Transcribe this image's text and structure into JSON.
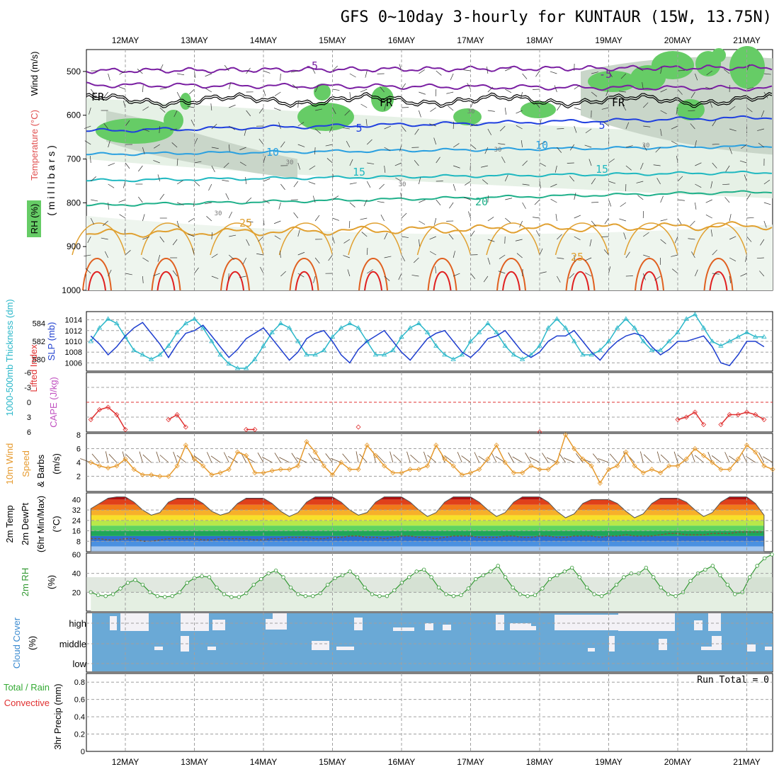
{
  "title": "GFS 0~10day 3-hourly for KUNTAUR (15W, 13.75N)",
  "days": [
    "12MAY",
    "13MAY",
    "14MAY",
    "15MAY",
    "16MAY",
    "17MAY",
    "18MAY",
    "19MAY",
    "20MAY",
    "21MAY"
  ],
  "colors": {
    "grid": "#a0a0a0",
    "rh": "#66cc66",
    "slp": "#1f3fcf",
    "thick": "#2ab7c9",
    "li": "#e03030",
    "wind": "#e69a2e",
    "rh2m": "#339933",
    "cloud": "#6aa9d6",
    "cloud_gap": "#f3f1f6"
  },
  "panels": {
    "upper": {
      "ylabel_mb": "( m i l l i b a r s )",
      "ylabel_wind": "Wind (m/s)",
      "ylabel_temp": "Temperature (°C)",
      "ylabel_rh": "RH (%)",
      "ticks": [
        "500",
        "600",
        "700",
        "800",
        "900",
        "1000"
      ],
      "contour_labels": [
        "-5",
        "-5",
        "5",
        "5",
        "10",
        "10",
        "15",
        "15",
        "20",
        "25",
        "25",
        "FR",
        "FR",
        "FR",
        "30",
        "30",
        "30",
        "30",
        "30",
        "30"
      ]
    },
    "slp": {
      "ylabel_slp": "SLP (mb)",
      "ylabel_thick": "1000-500mb Thickness (dm)",
      "ticks_left": [
        "584",
        "582",
        "580"
      ],
      "ticks_right": [
        "1014",
        "1012",
        "1010",
        "1008",
        "1006"
      ]
    },
    "cape": {
      "ylabel_cape": "CAPE (J/kg)",
      "ylabel_li": "Lifted Index",
      "ticks": [
        "-6",
        "-3",
        "0",
        "3",
        "6"
      ]
    },
    "wind": {
      "ylabel1": "10m Wind",
      "ylabel2": "Speed",
      "ylabel3": "& Barbs",
      "unit": "(m/s)",
      "ticks": [
        "8",
        "6",
        "4",
        "2"
      ]
    },
    "temp": {
      "ylabel1": "2m Temp",
      "ylabel2": "2m DewPt",
      "ylabel3": "(6hr Min/Max)",
      "unit": "(°C)",
      "ticks": [
        "40",
        "32",
        "24",
        "16",
        "8"
      ]
    },
    "rh": {
      "ylabel": "2m RH",
      "unit": "(%)",
      "ticks": [
        "60",
        "40",
        "20"
      ]
    },
    "cloud": {
      "ylabel": "Cloud Cover",
      "unit": "(%)",
      "levels": [
        "high",
        "middle",
        "low"
      ]
    },
    "precip": {
      "ylabel1": "3hr Precip (mm)",
      "ylabel2": "Total / Rain",
      "ylabel3": "Convective",
      "ticks": [
        "0.8",
        "0.6",
        "0.4",
        "0.2",
        "0"
      ],
      "run_total": "Run Total = 0"
    }
  },
  "chart_data": [
    {
      "type": "line",
      "name": "SLP / Thickness",
      "x_unit": "3-hourly steps from 11 MAY 12Z",
      "series": [
        {
          "name": "SLP (mb)",
          "values": [
            1011.0,
            1009.5,
            1007.5,
            1009.0,
            1011.0,
            1012.5,
            1013.5,
            1011.5,
            1009.5,
            1007.0,
            1009.5,
            1011.5,
            1012.0,
            1013.0,
            1011.0,
            1009.0,
            1007.0,
            1008.5,
            1010.5,
            1011.5,
            1012.5,
            1010.5,
            1008.5,
            1006.5,
            1008.0,
            1010.5,
            1011.5,
            1012.0,
            1010.0,
            1007.5,
            1006.0,
            1008.5,
            1010.0,
            1011.0,
            1012.0,
            1010.0,
            1008.0,
            1006.5,
            1008.5,
            1010.5,
            1011.5,
            1012.0,
            1010.0,
            1008.0,
            1007.0,
            1008.5,
            1010.5,
            1011.0,
            1012.0,
            1010.0,
            1008.0,
            1007.0,
            1008.0,
            1010.0,
            1011.0,
            1011.0,
            1012.0,
            1010.0,
            1008.0,
            1006.5,
            1008.5,
            1010.0,
            1011.0,
            1011.5,
            1011.0,
            1009.0,
            1007.5,
            1008.5,
            1010.0,
            1010.0,
            1010.5,
            1011.0,
            1009.0,
            1006.0,
            1005.5,
            1007.5,
            1010.0,
            1010.0,
            1009.0
          ]
        },
        {
          "name": "1000-500mb Thickness (dm)",
          "values": [
            582.0,
            583.5,
            584.5,
            584.0,
            582.5,
            581.0,
            580.5,
            580.0,
            580.5,
            581.5,
            583.0,
            584.0,
            584.5,
            583.5,
            582.0,
            580.5,
            579.5,
            579.0,
            579.0,
            580.0,
            581.5,
            583.0,
            584.0,
            583.5,
            582.0,
            580.5,
            580.5,
            581.0,
            582.5,
            583.5,
            584.0,
            583.5,
            582.0,
            580.5,
            580.5,
            581.0,
            582.5,
            583.5,
            584.0,
            583.0,
            581.5,
            580.5,
            580.0,
            580.5,
            582.0,
            583.0,
            584.0,
            583.0,
            581.5,
            580.5,
            580.0,
            580.5,
            581.5,
            583.5,
            584.5,
            583.5,
            582.0,
            580.5,
            580.5,
            581.0,
            582.0,
            583.5,
            584.5,
            583.5,
            582.0,
            581.0,
            581.0,
            582.0,
            583.0,
            584.5,
            585.0,
            583.5,
            582.0,
            581.5,
            582.0,
            582.5,
            583.0,
            582.5,
            582.5
          ]
        }
      ],
      "ylim_slp": [
        1005,
        1015
      ],
      "ylim_thickness": [
        579,
        585
      ]
    },
    {
      "type": "line",
      "name": "Lifted Index",
      "series": [
        {
          "name": "Lifted Index",
          "values": [
            3.5,
            1.5,
            1.0,
            2.5,
            5.5,
            null,
            null,
            null,
            null,
            3.5,
            2.5,
            5.0,
            null,
            null,
            null,
            null,
            null,
            null,
            5.5,
            5.5,
            null,
            null,
            null,
            null,
            null,
            null,
            null,
            null,
            null,
            null,
            null,
            5.0,
            null,
            null,
            null,
            null,
            null,
            null,
            null,
            null,
            null,
            null,
            null,
            null,
            null,
            null,
            null,
            null,
            null,
            null,
            null,
            null,
            6.0,
            null,
            null,
            null,
            null,
            null,
            null,
            null,
            null,
            null,
            null,
            null,
            null,
            null,
            null,
            null,
            3.5,
            3.0,
            2.0,
            4.5,
            null,
            4.5,
            2.5,
            2.5,
            2.0,
            2.5,
            3.5
          ]
        }
      ],
      "ylim": [
        6,
        -6
      ]
    },
    {
      "type": "line",
      "name": "10m Wind Speed",
      "series": [
        {
          "name": "10m Wind Speed (m/s)",
          "values": [
            4.0,
            3.5,
            3.2,
            3.5,
            4.5,
            3.0,
            2.2,
            2.2,
            2.0,
            2.0,
            3.5,
            6.5,
            4.5,
            3.5,
            2.2,
            2.5,
            3.0,
            5.5,
            5.0,
            2.5,
            2.5,
            2.8,
            3.0,
            3.0,
            3.5,
            7.0,
            5.5,
            3.5,
            2.2,
            4.0,
            3.0,
            3.0,
            6.5,
            5.0,
            3.5,
            2.5,
            2.5,
            3.0,
            3.0,
            3.5,
            6.5,
            4.5,
            3.5,
            2.2,
            2.5,
            3.0,
            4.5,
            6.5,
            4.0,
            2.5,
            2.5,
            3.5,
            3.0,
            3.0,
            4.0,
            8.0,
            6.0,
            4.5,
            3.5,
            1.0,
            3.0,
            3.5,
            5.5,
            3.5,
            2.5,
            3.0,
            2.5,
            3.5,
            3.5,
            4.5,
            6.0,
            5.0,
            4.0,
            3.0,
            3.0,
            4.5,
            6.5,
            5.5,
            3.5,
            3.0
          ]
        }
      ],
      "ylim": [
        0,
        8
      ]
    },
    {
      "type": "area",
      "name": "2m Temp / DewPt",
      "series": [
        {
          "name": "2m Temp (°C)",
          "values": [
            33,
            37,
            41,
            42,
            42,
            38,
            32,
            28,
            30,
            38,
            41,
            41,
            41,
            37,
            31,
            28,
            30,
            37,
            41,
            41,
            41,
            37,
            31,
            27,
            30,
            38,
            42,
            42,
            42,
            38,
            32,
            28,
            30,
            38,
            42,
            42,
            42,
            38,
            32,
            27,
            30,
            38,
            42,
            42,
            42,
            38,
            32,
            27,
            30,
            38,
            42,
            42,
            42,
            38,
            31,
            26,
            29,
            37,
            40,
            40,
            40,
            37,
            31,
            26,
            29,
            37,
            41,
            41,
            41,
            38,
            32,
            27,
            30,
            38,
            42,
            42,
            42,
            37,
            28
          ]
        },
        {
          "name": "2m DewPt (°C)",
          "values": [
            10,
            10,
            9,
            9,
            10,
            10,
            8,
            8,
            9,
            10,
            10,
            10,
            10,
            9,
            9,
            10,
            10,
            10,
            10,
            9,
            9,
            10,
            10,
            11,
            11,
            11,
            10,
            10,
            11,
            11,
            12,
            12,
            11,
            11,
            10,
            11,
            12,
            12,
            11,
            11,
            10,
            11,
            12,
            12,
            12,
            11,
            11,
            11,
            12,
            12,
            11,
            11,
            12,
            12,
            11,
            11,
            12,
            12,
            12,
            11,
            12,
            12,
            13,
            12,
            12,
            12,
            13,
            14,
            14,
            13,
            13,
            13,
            14,
            14,
            14,
            15,
            15,
            15,
            15
          ]
        }
      ],
      "ylim": [
        0,
        44
      ]
    },
    {
      "type": "area",
      "name": "2m RH",
      "series": [
        {
          "name": "2m RH (%)",
          "values": [
            20,
            17,
            16,
            18,
            24,
            30,
            33,
            28,
            20,
            16,
            15,
            16,
            20,
            30,
            35,
            37,
            36,
            25,
            18,
            15,
            15,
            19,
            28,
            34,
            40,
            43,
            36,
            25,
            18,
            16,
            16,
            19,
            28,
            35,
            38,
            42,
            36,
            25,
            18,
            16,
            16,
            22,
            30,
            36,
            42,
            44,
            36,
            25,
            18,
            16,
            17,
            24,
            34,
            38,
            42,
            48,
            36,
            25,
            18,
            16,
            17,
            24,
            34,
            38,
            42,
            46,
            36,
            25,
            18,
            16,
            20,
            28,
            36,
            40,
            40,
            46,
            36,
            25,
            18,
            16,
            20,
            32,
            40,
            44,
            48,
            38,
            28,
            18,
            20,
            36,
            48,
            56,
            60
          ]
        }
      ],
      "ylim": [
        0,
        60
      ]
    },
    {
      "type": "bar",
      "name": "3hr Precip",
      "series": [
        {
          "name": "3hr Precip (mm)",
          "values": [
            0
          ]
        }
      ],
      "ylim": [
        0,
        0.9
      ]
    }
  ]
}
